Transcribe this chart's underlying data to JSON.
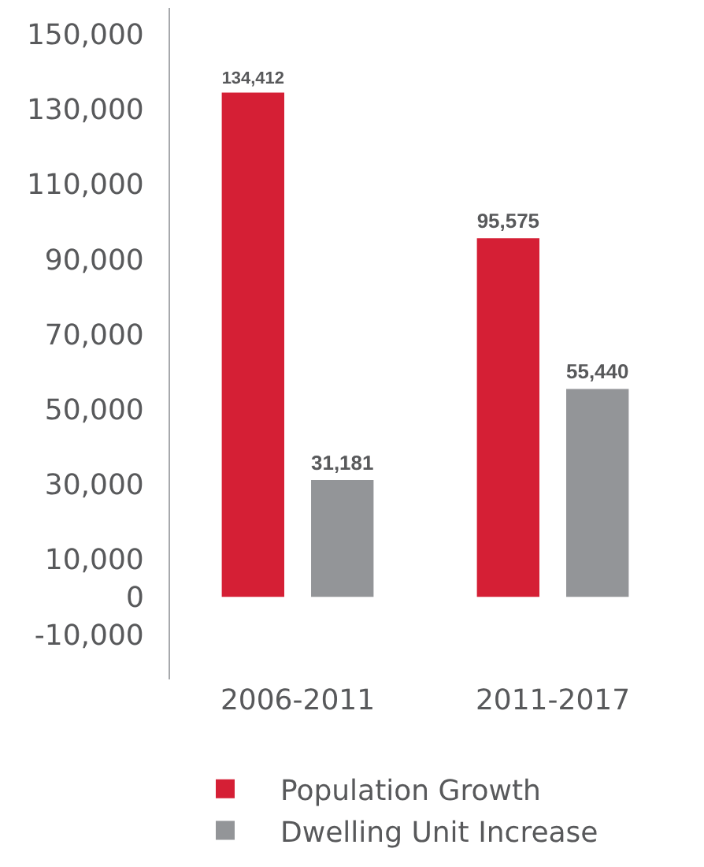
{
  "chart_data": {
    "type": "bar",
    "categories": [
      "2006-2011",
      "2011-2017"
    ],
    "series": [
      {
        "name": "Population Growth",
        "color": "#d51f35",
        "values": [
          134412,
          95575
        ],
        "value_labels": [
          "134,412",
          "95,575"
        ]
      },
      {
        "name": "Dwelling Unit Increase",
        "color": "#939598",
        "values": [
          31181,
          55440
        ],
        "value_labels": [
          "31,181",
          "55,440"
        ]
      }
    ],
    "ylim": [
      -22000,
      157000
    ],
    "yticks": [
      {
        "value": -10000,
        "label": "-10,000"
      },
      {
        "value": 0,
        "label": "0"
      },
      {
        "value": 10000,
        "label": "10,000"
      },
      {
        "value": 30000,
        "label": "30,000"
      },
      {
        "value": 50000,
        "label": "50,000"
      },
      {
        "value": 70000,
        "label": "70,000"
      },
      {
        "value": 90000,
        "label": "90,000"
      },
      {
        "value": 110000,
        "label": "110,000"
      },
      {
        "value": 130000,
        "label": "130,000"
      },
      {
        "value": 150000,
        "label": "150,000"
      }
    ],
    "grid": false,
    "legend": "bottom"
  }
}
